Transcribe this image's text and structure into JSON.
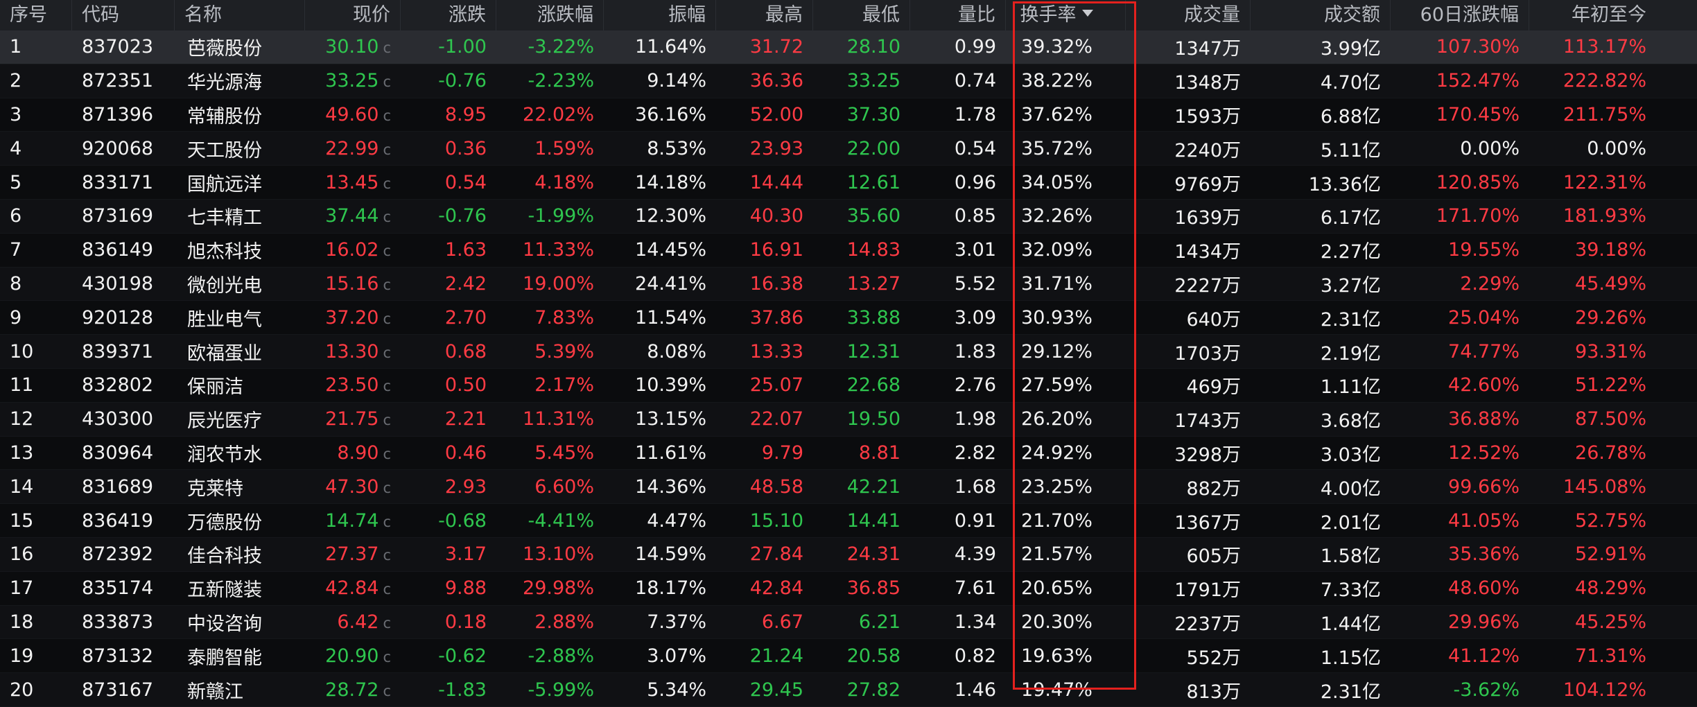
{
  "table": {
    "columns": [
      "序号",
      "代码",
      "名称",
      "现价",
      "涨跌",
      "涨跌幅",
      "振幅",
      "最高",
      "最低",
      "量比",
      "换手率",
      "成交量",
      "成交额",
      "60日涨跌幅",
      "年初至今"
    ],
    "sorted_column": "换手率",
    "sort_direction": "descending",
    "price_suffix": "c",
    "colors": {
      "up": "#ff3b44",
      "down": "#2fc64f",
      "neutral": "#f2f2f2",
      "highlight_box": "#e4211e",
      "header_bg": "#1e2024"
    },
    "rows": [
      {
        "idx": "1",
        "code": "837023",
        "name": "芭薇股份",
        "price": "30.10",
        "change": "-1.00",
        "pct": "-3.22%",
        "amp": "11.64%",
        "high": "31.72",
        "low": "28.10",
        "vr": "0.99",
        "turnover": "39.32%",
        "vol": "1347万",
        "amount": "3.99亿",
        "d60": "107.30%",
        "ytd": "113.17%",
        "price_dir": "down",
        "high_dir": "up",
        "low_dir": "down",
        "d60_dir": "up",
        "ytd_dir": "up",
        "selected": true
      },
      {
        "idx": "2",
        "code": "872351",
        "name": "华光源海",
        "price": "33.25",
        "change": "-0.76",
        "pct": "-2.23%",
        "amp": "9.14%",
        "high": "36.36",
        "low": "33.25",
        "vr": "0.74",
        "turnover": "38.22%",
        "vol": "1348万",
        "amount": "4.70亿",
        "d60": "152.47%",
        "ytd": "222.82%",
        "price_dir": "down",
        "high_dir": "up",
        "low_dir": "down",
        "d60_dir": "up",
        "ytd_dir": "up"
      },
      {
        "idx": "3",
        "code": "871396",
        "name": "常辅股份",
        "price": "49.60",
        "change": "8.95",
        "pct": "22.02%",
        "amp": "36.16%",
        "high": "52.00",
        "low": "37.30",
        "vr": "1.78",
        "turnover": "37.62%",
        "vol": "1593万",
        "amount": "6.88亿",
        "d60": "170.45%",
        "ytd": "211.75%",
        "price_dir": "up",
        "high_dir": "up",
        "low_dir": "down",
        "d60_dir": "up",
        "ytd_dir": "up"
      },
      {
        "idx": "4",
        "code": "920068",
        "name": "天工股份",
        "price": "22.99",
        "change": "0.36",
        "pct": "1.59%",
        "amp": "8.53%",
        "high": "23.93",
        "low": "22.00",
        "vr": "0.54",
        "turnover": "35.72%",
        "vol": "2240万",
        "amount": "5.11亿",
        "d60": "0.00%",
        "ytd": "0.00%",
        "price_dir": "up",
        "high_dir": "up",
        "low_dir": "down",
        "d60_dir": "neutral",
        "ytd_dir": "neutral"
      },
      {
        "idx": "5",
        "code": "833171",
        "name": "国航远洋",
        "price": "13.45",
        "change": "0.54",
        "pct": "4.18%",
        "amp": "14.18%",
        "high": "14.44",
        "low": "12.61",
        "vr": "0.96",
        "turnover": "34.05%",
        "vol": "9769万",
        "amount": "13.36亿",
        "d60": "120.85%",
        "ytd": "122.31%",
        "price_dir": "up",
        "high_dir": "up",
        "low_dir": "down",
        "d60_dir": "up",
        "ytd_dir": "up"
      },
      {
        "idx": "6",
        "code": "873169",
        "name": "七丰精工",
        "price": "37.44",
        "change": "-0.76",
        "pct": "-1.99%",
        "amp": "12.30%",
        "high": "40.30",
        "low": "35.60",
        "vr": "0.85",
        "turnover": "32.26%",
        "vol": "1639万",
        "amount": "6.17亿",
        "d60": "171.70%",
        "ytd": "181.93%",
        "price_dir": "down",
        "high_dir": "up",
        "low_dir": "down",
        "d60_dir": "up",
        "ytd_dir": "up"
      },
      {
        "idx": "7",
        "code": "836149",
        "name": "旭杰科技",
        "price": "16.02",
        "change": "1.63",
        "pct": "11.33%",
        "amp": "14.45%",
        "high": "16.91",
        "low": "14.83",
        "vr": "3.01",
        "turnover": "32.09%",
        "vol": "1434万",
        "amount": "2.27亿",
        "d60": "19.55%",
        "ytd": "39.18%",
        "price_dir": "up",
        "high_dir": "up",
        "low_dir": "up",
        "d60_dir": "up",
        "ytd_dir": "up"
      },
      {
        "idx": "8",
        "code": "430198",
        "name": "微创光电",
        "price": "15.16",
        "change": "2.42",
        "pct": "19.00%",
        "amp": "24.41%",
        "high": "16.38",
        "low": "13.27",
        "vr": "5.52",
        "turnover": "31.71%",
        "vol": "2227万",
        "amount": "3.27亿",
        "d60": "2.29%",
        "ytd": "45.49%",
        "price_dir": "up",
        "high_dir": "up",
        "low_dir": "up",
        "d60_dir": "up",
        "ytd_dir": "up"
      },
      {
        "idx": "9",
        "code": "920128",
        "name": "胜业电气",
        "price": "37.20",
        "change": "2.70",
        "pct": "7.83%",
        "amp": "11.54%",
        "high": "37.86",
        "low": "33.88",
        "vr": "3.09",
        "turnover": "30.93%",
        "vol": "640万",
        "amount": "2.31亿",
        "d60": "25.04%",
        "ytd": "29.26%",
        "price_dir": "up",
        "high_dir": "up",
        "low_dir": "down",
        "d60_dir": "up",
        "ytd_dir": "up"
      },
      {
        "idx": "10",
        "code": "839371",
        "name": "欧福蛋业",
        "price": "13.30",
        "change": "0.68",
        "pct": "5.39%",
        "amp": "8.08%",
        "high": "13.33",
        "low": "12.31",
        "vr": "1.83",
        "turnover": "29.12%",
        "vol": "1703万",
        "amount": "2.19亿",
        "d60": "74.77%",
        "ytd": "93.31%",
        "price_dir": "up",
        "high_dir": "up",
        "low_dir": "down",
        "d60_dir": "up",
        "ytd_dir": "up"
      },
      {
        "idx": "11",
        "code": "832802",
        "name": "保丽洁",
        "price": "23.50",
        "change": "0.50",
        "pct": "2.17%",
        "amp": "10.39%",
        "high": "25.07",
        "low": "22.68",
        "vr": "2.76",
        "turnover": "27.59%",
        "vol": "469万",
        "amount": "1.11亿",
        "d60": "42.60%",
        "ytd": "51.22%",
        "price_dir": "up",
        "high_dir": "up",
        "low_dir": "down",
        "d60_dir": "up",
        "ytd_dir": "up"
      },
      {
        "idx": "12",
        "code": "430300",
        "name": "辰光医疗",
        "price": "21.75",
        "change": "2.21",
        "pct": "11.31%",
        "amp": "13.15%",
        "high": "22.07",
        "low": "19.50",
        "vr": "1.98",
        "turnover": "26.20%",
        "vol": "1743万",
        "amount": "3.68亿",
        "d60": "36.88%",
        "ytd": "87.50%",
        "price_dir": "up",
        "high_dir": "up",
        "low_dir": "down",
        "d60_dir": "up",
        "ytd_dir": "up"
      },
      {
        "idx": "13",
        "code": "830964",
        "name": "润农节水",
        "price": "8.90",
        "change": "0.46",
        "pct": "5.45%",
        "amp": "11.61%",
        "high": "9.79",
        "low": "8.81",
        "vr": "2.82",
        "turnover": "24.92%",
        "vol": "3298万",
        "amount": "3.03亿",
        "d60": "12.52%",
        "ytd": "26.78%",
        "price_dir": "up",
        "high_dir": "up",
        "low_dir": "up",
        "d60_dir": "up",
        "ytd_dir": "up"
      },
      {
        "idx": "14",
        "code": "831689",
        "name": "克莱特",
        "price": "47.30",
        "change": "2.93",
        "pct": "6.60%",
        "amp": "14.36%",
        "high": "48.58",
        "low": "42.21",
        "vr": "1.68",
        "turnover": "23.25%",
        "vol": "882万",
        "amount": "4.00亿",
        "d60": "99.66%",
        "ytd": "145.08%",
        "price_dir": "up",
        "high_dir": "up",
        "low_dir": "down",
        "d60_dir": "up",
        "ytd_dir": "up"
      },
      {
        "idx": "15",
        "code": "836419",
        "name": "万德股份",
        "price": "14.74",
        "change": "-0.68",
        "pct": "-4.41%",
        "amp": "4.47%",
        "high": "15.10",
        "low": "14.41",
        "vr": "0.91",
        "turnover": "21.70%",
        "vol": "1367万",
        "amount": "2.01亿",
        "d60": "41.05%",
        "ytd": "52.75%",
        "price_dir": "down",
        "high_dir": "down",
        "low_dir": "down",
        "d60_dir": "up",
        "ytd_dir": "up"
      },
      {
        "idx": "16",
        "code": "872392",
        "name": "佳合科技",
        "price": "27.37",
        "change": "3.17",
        "pct": "13.10%",
        "amp": "14.59%",
        "high": "27.84",
        "low": "24.31",
        "vr": "4.39",
        "turnover": "21.57%",
        "vol": "605万",
        "amount": "1.58亿",
        "d60": "35.36%",
        "ytd": "52.91%",
        "price_dir": "up",
        "high_dir": "up",
        "low_dir": "up",
        "d60_dir": "up",
        "ytd_dir": "up"
      },
      {
        "idx": "17",
        "code": "835174",
        "name": "五新隧装",
        "price": "42.84",
        "change": "9.88",
        "pct": "29.98%",
        "amp": "18.17%",
        "high": "42.84",
        "low": "36.85",
        "vr": "7.61",
        "turnover": "20.65%",
        "vol": "1791万",
        "amount": "7.33亿",
        "d60": "48.60%",
        "ytd": "48.29%",
        "price_dir": "up",
        "high_dir": "up",
        "low_dir": "up",
        "d60_dir": "up",
        "ytd_dir": "up"
      },
      {
        "idx": "18",
        "code": "833873",
        "name": "中设咨询",
        "price": "6.42",
        "change": "0.18",
        "pct": "2.88%",
        "amp": "7.37%",
        "high": "6.67",
        "low": "6.21",
        "vr": "1.34",
        "turnover": "20.30%",
        "vol": "2237万",
        "amount": "1.44亿",
        "d60": "29.96%",
        "ytd": "45.25%",
        "price_dir": "up",
        "high_dir": "up",
        "low_dir": "down",
        "d60_dir": "up",
        "ytd_dir": "up"
      },
      {
        "idx": "19",
        "code": "873132",
        "name": "泰鹏智能",
        "price": "20.90",
        "change": "-0.62",
        "pct": "-2.88%",
        "amp": "3.07%",
        "high": "21.24",
        "low": "20.58",
        "vr": "0.82",
        "turnover": "19.63%",
        "vol": "552万",
        "amount": "1.15亿",
        "d60": "41.12%",
        "ytd": "71.31%",
        "price_dir": "down",
        "high_dir": "down",
        "low_dir": "down",
        "d60_dir": "up",
        "ytd_dir": "up"
      },
      {
        "idx": "20",
        "code": "873167",
        "name": "新赣江",
        "price": "28.72",
        "change": "-1.83",
        "pct": "-5.99%",
        "amp": "5.34%",
        "high": "29.45",
        "low": "27.82",
        "vr": "1.46",
        "turnover": "19.47%",
        "vol": "813万",
        "amount": "2.31亿",
        "d60": "-3.62%",
        "ytd": "104.12%",
        "price_dir": "down",
        "high_dir": "down",
        "low_dir": "down",
        "d60_dir": "down",
        "ytd_dir": "up"
      }
    ]
  }
}
